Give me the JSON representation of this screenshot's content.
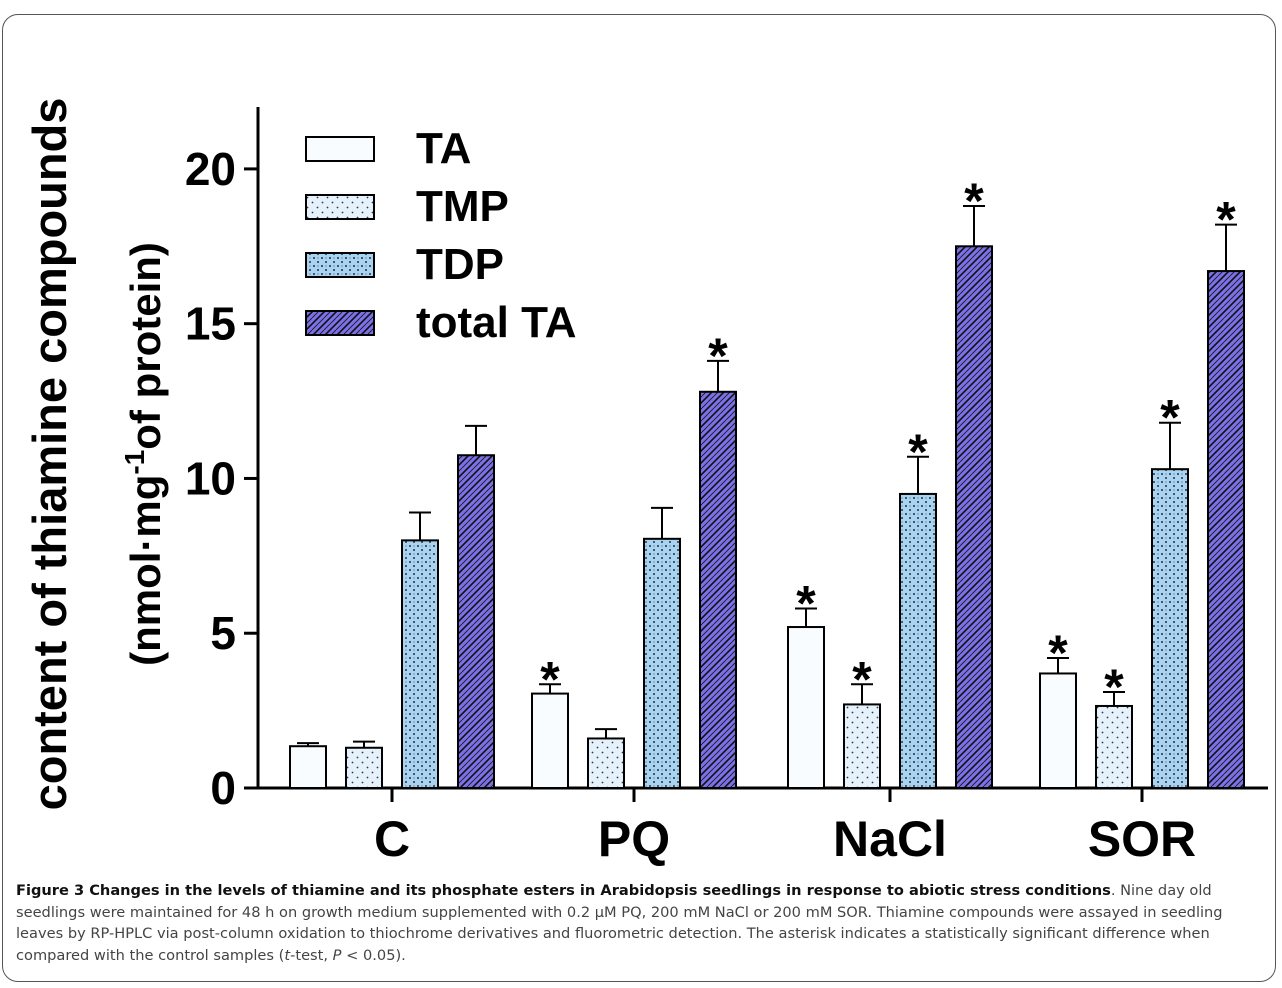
{
  "chart_data": {
    "type": "bar",
    "ylabel_line1": "content of thiamine compounds",
    "ylabel_line2_prefix": "(nmol·mg",
    "ylabel_line2_sup": "-1",
    "ylabel_line2_suffix": "of protein)",
    "ylim": [
      0,
      22
    ],
    "yticks": [
      0,
      5,
      10,
      15,
      20
    ],
    "categories": [
      "C",
      "PQ",
      "NaCl",
      "SOR"
    ],
    "series": [
      {
        "name": "TA",
        "values": [
          1.35,
          3.05,
          5.2,
          3.7
        ],
        "errors": [
          0.1,
          0.3,
          0.6,
          0.5
        ],
        "significant": [
          false,
          true,
          true,
          true
        ],
        "color": "#f8fcff"
      },
      {
        "name": "TMP",
        "values": [
          1.3,
          1.6,
          2.7,
          2.65
        ],
        "errors": [
          0.2,
          0.3,
          0.65,
          0.45
        ],
        "significant": [
          false,
          false,
          true,
          true
        ],
        "color": "#e6f2fb"
      },
      {
        "name": "TDP",
        "values": [
          8.0,
          8.05,
          9.5,
          10.3
        ],
        "errors": [
          0.9,
          1.0,
          1.2,
          1.5
        ],
        "significant": [
          false,
          false,
          true,
          true
        ],
        "color": "#a9d3f0"
      },
      {
        "name": "total TA",
        "values": [
          10.75,
          12.8,
          17.5,
          16.7
        ],
        "errors": [
          0.95,
          1.0,
          1.3,
          1.5
        ],
        "significant": [
          false,
          true,
          true,
          true
        ],
        "color": "#7b70e6"
      }
    ],
    "significance_marker": "*",
    "legend_position": "top-left",
    "grid": false
  },
  "caption": {
    "title": "Figure 3 Changes in the levels of thiamine and its phosphate esters in Arabidopsis seedlings in response to abiotic stress conditions",
    "text_a": ". Nine day old seedlings were maintained for 48 h on growth medium supplemented with 0.2 µM PQ, 200 mM NaCl or 200 mM SOR. Thiamine compounds were assayed in seedling leaves by RP-HPLC via post-column oxidation to thiochrome derivatives and fluorometric detection. The asterisk indicates a statistically significant difference when compared with the control samples (",
    "text_t": "t",
    "text_b": "-test, ",
    "text_p": "P",
    "text_c": " < 0.05)."
  }
}
